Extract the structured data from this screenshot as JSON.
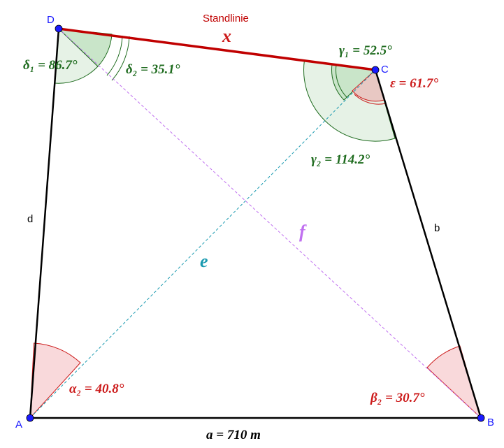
{
  "points": {
    "A": "A",
    "B": "B",
    "C": "C",
    "D": "D"
  },
  "sides": {
    "d": "d",
    "b": "b",
    "standlinie": "Standlinie",
    "x": "x",
    "e": "e",
    "f": "f",
    "a": "a = 710 m"
  },
  "angles": {
    "delta1": "δ₁ = 86.7°",
    "delta2": "δ₂ = 35.1°",
    "gamma1": "γ₁ = 52.5°",
    "gamma2": "γ₂ = 114.2°",
    "epsilon": "ε = 61.7°",
    "alpha2": "α₂ = 40.8°",
    "beta2": "β₂ = 30.7°"
  },
  "colors": {
    "point": "#1a1aff",
    "standlinie": "#c00000",
    "green_angle": "#1e6b1e",
    "red_angle": "#cc1a1a",
    "diagonal_e": "#1a9ab0",
    "diagonal_f": "#c070f0"
  }
}
